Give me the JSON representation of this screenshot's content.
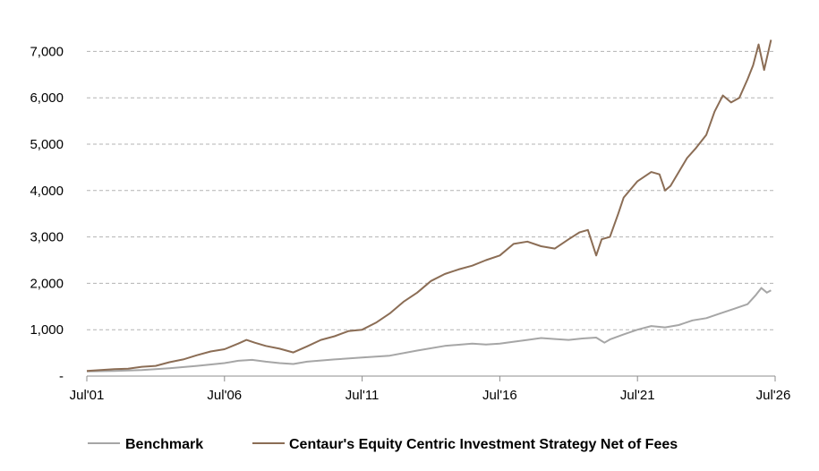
{
  "chart_data": {
    "type": "line",
    "x_ticks": [
      "Jul'01",
      "Jul'06",
      "Jul'11",
      "Jul'16",
      "Jul'21",
      "Jul'26"
    ],
    "y_ticks": [
      "-",
      "1,000",
      "2,000",
      "3,000",
      "4,000",
      "5,000",
      "6,000",
      "7,000"
    ],
    "ylim": [
      0,
      7400
    ],
    "xlim": [
      2001.5,
      2026.5
    ],
    "grid": "horizontal dashed",
    "legend_position": "bottom",
    "series": [
      {
        "name": "Benchmark",
        "color": "#a6a6a6",
        "x": [
          2001.5,
          2002.5,
          2003.5,
          2004.5,
          2005.5,
          2006.5,
          2007.0,
          2007.5,
          2008.0,
          2008.5,
          2009.0,
          2009.5,
          2010.5,
          2011.5,
          2012.5,
          2013.5,
          2014.5,
          2015.5,
          2016.0,
          2016.5,
          2017.5,
          2018.0,
          2018.5,
          2019.0,
          2019.5,
          2020.0,
          2020.3,
          2020.5,
          2021.0,
          2021.5,
          2022.0,
          2022.5,
          2023.0,
          2023.5,
          2024.0,
          2024.5,
          2025.0,
          2025.5,
          2025.8,
          2026.0,
          2026.2,
          2026.35
        ],
        "values": [
          100,
          110,
          130,
          170,
          220,
          280,
          330,
          350,
          310,
          280,
          260,
          310,
          360,
          400,
          440,
          550,
          650,
          700,
          680,
          700,
          780,
          820,
          800,
          780,
          810,
          830,
          720,
          790,
          900,
          1000,
          1080,
          1050,
          1100,
          1200,
          1250,
          1350,
          1450,
          1550,
          1750,
          1900,
          1800,
          1850
        ]
      },
      {
        "name": "Centaur's Equity Centric Investment Strategy Net of Fees",
        "color": "#8b6d55",
        "x": [
          2001.5,
          2002.5,
          2003.0,
          2003.5,
          2004.0,
          2004.5,
          2005.0,
          2005.5,
          2006.0,
          2006.5,
          2007.0,
          2007.3,
          2007.6,
          2008.0,
          2008.5,
          2009.0,
          2009.5,
          2010.0,
          2010.5,
          2011.0,
          2011.5,
          2012.0,
          2012.5,
          2013.0,
          2013.5,
          2014.0,
          2014.5,
          2015.0,
          2015.5,
          2016.0,
          2016.5,
          2017.0,
          2017.5,
          2018.0,
          2018.5,
          2019.0,
          2019.4,
          2019.7,
          2020.0,
          2020.2,
          2020.5,
          2020.8,
          2021.0,
          2021.5,
          2022.0,
          2022.3,
          2022.5,
          2022.7,
          2023.0,
          2023.3,
          2023.6,
          2024.0,
          2024.3,
          2024.6,
          2024.9,
          2025.2,
          2025.5,
          2025.7,
          2025.9,
          2026.1,
          2026.35
        ],
        "values": [
          110,
          150,
          160,
          200,
          220,
          300,
          360,
          450,
          530,
          580,
          700,
          780,
          720,
          650,
          590,
          510,
          640,
          780,
          860,
          970,
          1000,
          1150,
          1350,
          1600,
          1800,
          2050,
          2200,
          2300,
          2380,
          2500,
          2600,
          2850,
          2900,
          2800,
          2750,
          2950,
          3100,
          3150,
          2600,
          2950,
          3000,
          3500,
          3850,
          4200,
          4400,
          4350,
          4000,
          4100,
          4400,
          4700,
          4900,
          5200,
          5700,
          6050,
          5900,
          6000,
          6400,
          6700,
          7150,
          6600,
          7250
        ]
      }
    ]
  }
}
